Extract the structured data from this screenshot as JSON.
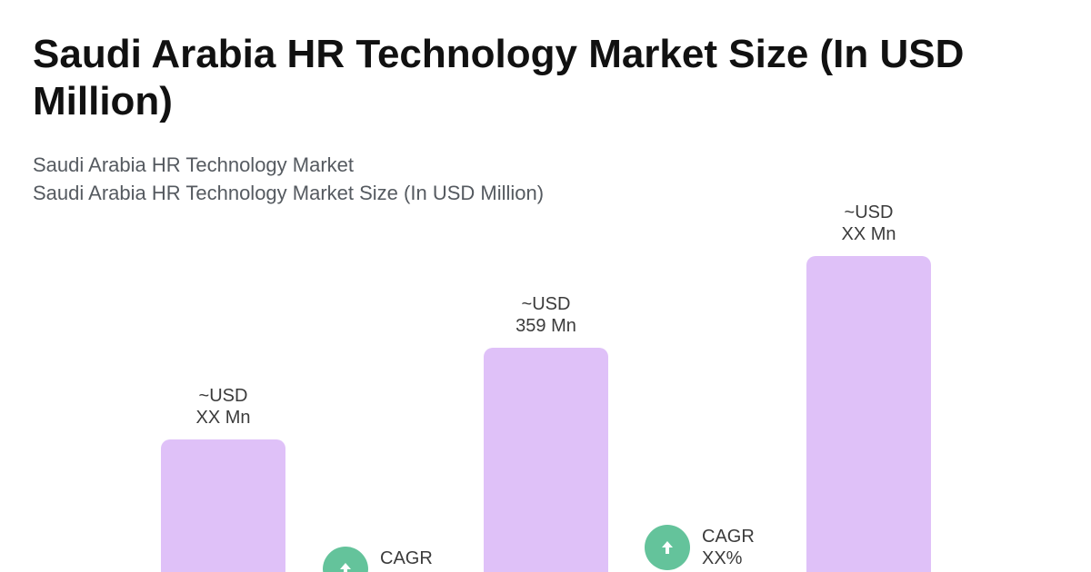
{
  "header": {
    "title": "Saudi Arabia HR Technology Market Size (In USD Million)",
    "subtitle_1": "Saudi Arabia HR Technology Market",
    "subtitle_2": "Saudi Arabia HR Technology Market Size (In USD Million)"
  },
  "chart_data": {
    "type": "bar",
    "title": "Saudi Arabia HR Technology Market Size (In USD Million)",
    "xlabel": "",
    "ylabel": "",
    "grid": false,
    "values": [
      {
        "label_line1": "~USD",
        "label_line2": "XX Mn"
      },
      {
        "label_line1": "~USD",
        "label_line2": "359 Mn"
      },
      {
        "label_line1": "~USD",
        "label_line2": "XX Mn"
      }
    ],
    "relative_heights": [
      0.42,
      0.71,
      1.0
    ],
    "cagr": [
      {
        "label": "CAGR",
        "value": ""
      },
      {
        "label": "CAGR",
        "value": "XX%"
      }
    ],
    "colors": {
      "bar": "#dfc1f8",
      "cagr_badge": "#64c39b"
    },
    "icons": {
      "cagr_badge": "arrow-up-icon"
    }
  }
}
